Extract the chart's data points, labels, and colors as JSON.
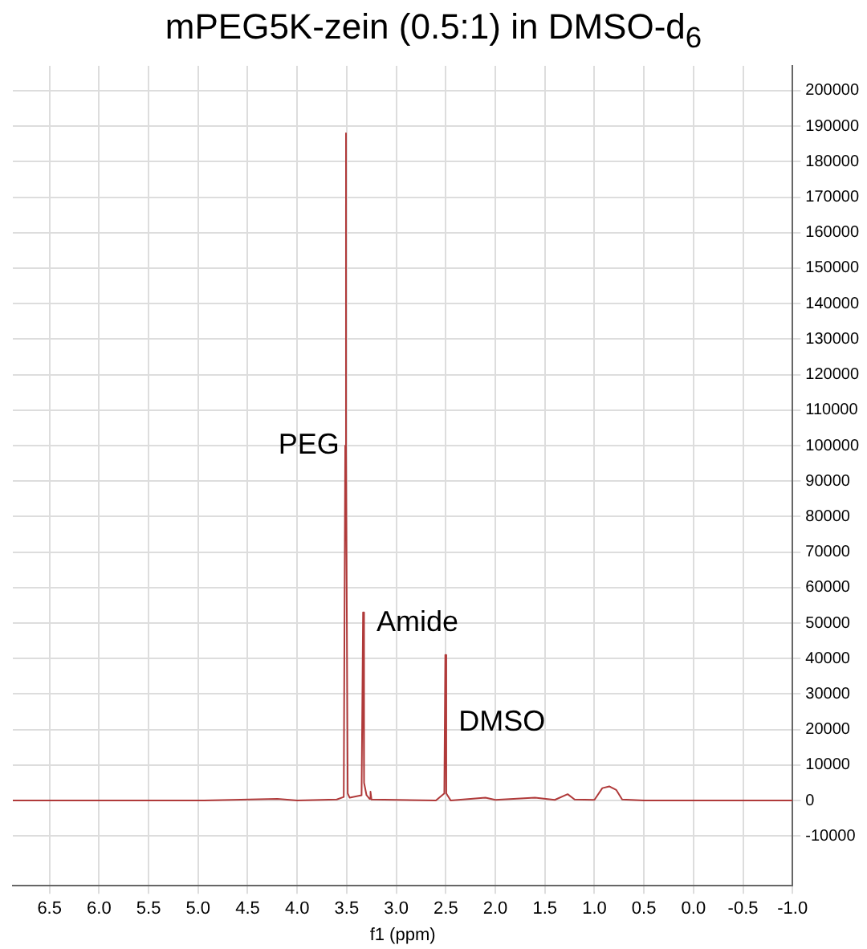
{
  "chart_data": {
    "type": "line",
    "title": "mPEG5K-zein (0.5:1) in DMSO-d$_{6}$",
    "xlabel": "f1 (ppm)",
    "x": [
      6.87,
      5.0,
      4.2,
      4.0,
      3.6,
      3.53,
      3.515,
      3.51,
      3.505,
      3.49,
      3.47,
      3.35,
      3.335,
      3.325,
      3.3,
      3.27,
      3.26,
      3.25,
      2.6,
      2.515,
      2.505,
      2.495,
      2.45,
      2.1,
      2.0,
      1.6,
      1.4,
      1.27,
      1.2,
      1.0,
      0.92,
      0.85,
      0.78,
      0.72,
      0.5,
      -1.0
    ],
    "series": [
      {
        "color": "#b03a3a",
        "values": [
          0,
          0,
          500,
          0,
          300,
          1000,
          100000,
          188000,
          100000,
          2000,
          800,
          1500,
          53000,
          5000,
          1500,
          500,
          2500,
          300,
          0,
          2000,
          41000,
          2000,
          0,
          800,
          200,
          800,
          200,
          1800,
          300,
          200,
          3500,
          4000,
          3000,
          300,
          0,
          0
        ]
      }
    ],
    "xlim": [
      6.87,
      -1.0
    ],
    "xticks": [
      6.5,
      {
        "value": 6,
        "label": "6.0"
      },
      5.5,
      {
        "value": 5,
        "label": "5.0"
      },
      4.5,
      {
        "value": 4,
        "label": "4.0"
      },
      3.5,
      {
        "value": 3,
        "label": "3.0"
      },
      2.5,
      {
        "value": 2,
        "label": "2.0"
      },
      1.5,
      {
        "value": 1,
        "label": "1.0"
      },
      0.5,
      {
        "value": 0,
        "label": "0.0"
      },
      -0.5,
      {
        "value": -1,
        "label": "-1.0"
      }
    ],
    "ylim": [
      -24000,
      207000
    ],
    "yticks": [
      -10000,
      0,
      10000,
      20000,
      30000,
      40000,
      50000,
      60000,
      70000,
      80000,
      90000,
      100000,
      110000,
      120000,
      130000,
      140000,
      150000,
      160000,
      170000,
      180000,
      190000,
      200000
    ],
    "grid": true,
    "legend": false,
    "marker": "none",
    "line_style": "solid",
    "annotations": [
      {
        "text": "PEG",
        "x": 3.51,
        "y": 100000
      },
      {
        "text": "Amide",
        "x": 3.33,
        "y": 50000
      },
      {
        "text": "DMSO",
        "x": 2.5,
        "y": 22000
      }
    ]
  }
}
